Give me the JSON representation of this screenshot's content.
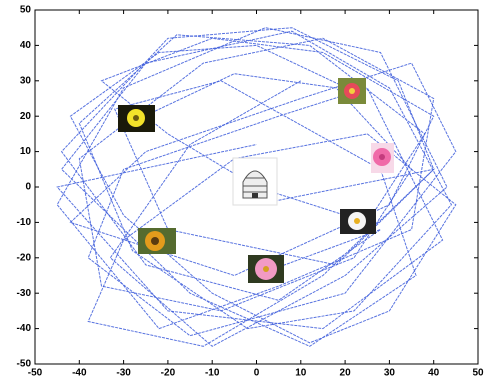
{
  "chart_data": {
    "type": "line",
    "xlim": [
      -50,
      50
    ],
    "ylim": [
      -50,
      50
    ],
    "xticks": [
      -50,
      -40,
      -30,
      -20,
      -10,
      0,
      10,
      20,
      30,
      40,
      50
    ],
    "yticks": [
      -50,
      -40,
      -30,
      -20,
      -10,
      0,
      10,
      20,
      30,
      40,
      50
    ],
    "line_style": "dashed",
    "series": [
      {
        "color": "#3b5bdb",
        "x": [
          0,
          -20,
          -35,
          -10,
          15,
          40,
          30,
          -5,
          -42,
          -25,
          10,
          35,
          45,
          20,
          -15,
          -38,
          -30,
          5,
          25,
          42,
          15,
          -20,
          -45,
          0
        ],
        "values": [
          0,
          15,
          30,
          42,
          38,
          20,
          -5,
          -25,
          -10,
          10,
          25,
          35,
          10,
          -30,
          -42,
          -20,
          5,
          20,
          28,
          -15,
          -40,
          -35,
          0,
          12
        ]
      },
      {
        "color": "#3b5bdb",
        "x": [
          0,
          25,
          38,
          12,
          -18,
          -40,
          -28,
          -2,
          22,
          44,
          30,
          8,
          -25,
          -44,
          -15,
          12,
          36,
          28,
          -8,
          -32,
          -20,
          18,
          40,
          0
        ],
        "values": [
          0,
          -10,
          15,
          40,
          43,
          18,
          -18,
          -40,
          -35,
          -5,
          28,
          44,
          35,
          5,
          -30,
          -45,
          -25,
          5,
          30,
          22,
          -12,
          -22,
          5,
          -5
        ]
      },
      {
        "color": "#3b5bdb",
        "x": [
          -27,
          -5,
          18,
          35,
          22,
          -8,
          -35,
          -40,
          -12,
          15,
          40,
          35,
          5,
          -22,
          -45,
          -30,
          2,
          28,
          43,
          20,
          -10,
          -33,
          -15,
          10
        ],
        "values": [
          19,
          32,
          28,
          5,
          -20,
          -35,
          -28,
          8,
          35,
          42,
          25,
          -12,
          -28,
          -40,
          -5,
          28,
          45,
          38,
          0,
          -25,
          -45,
          -20,
          12,
          30
        ]
      },
      {
        "color": "#3b5bdb",
        "x": [
          22,
          0,
          -22,
          -42,
          -30,
          -10,
          12,
          30,
          45,
          25,
          -5,
          -30,
          -38,
          -12,
          15,
          40,
          32,
          8,
          -20,
          -44,
          -25,
          5,
          28,
          2
        ],
        "values": [
          27,
          40,
          38,
          20,
          -8,
          -30,
          -44,
          -35,
          -5,
          15,
          8,
          -15,
          -38,
          -45,
          -25,
          5,
          30,
          45,
          42,
          10,
          -22,
          -32,
          -12,
          -24
        ]
      }
    ]
  }
}
